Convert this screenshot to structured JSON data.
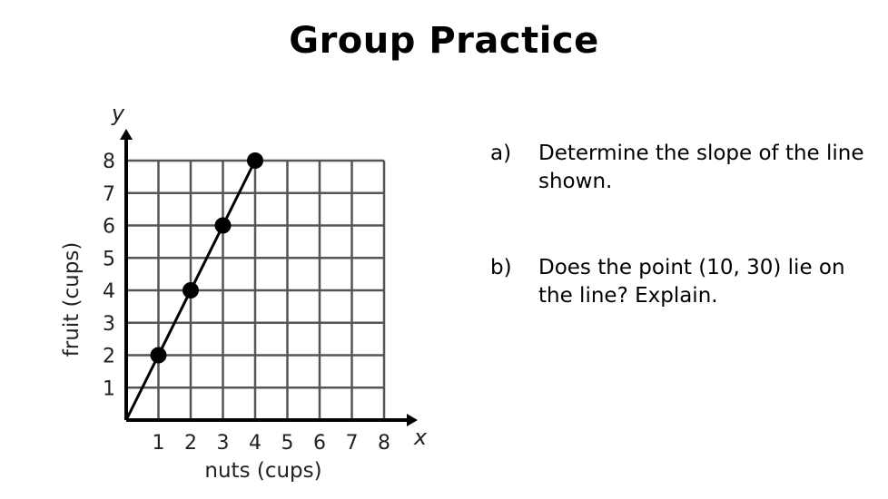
{
  "slide": {
    "title": "Group Practice",
    "questions": [
      {
        "label": "a)",
        "text": "Determine the slope of the line shown."
      },
      {
        "label": "b)",
        "text": "Does the point (10, 30) lie on the line? Explain."
      }
    ]
  },
  "chart_data": {
    "type": "line",
    "xlabel": "nuts (cups)",
    "ylabel": "fruit (cups)",
    "x_axis_var": "x",
    "y_axis_var": "y",
    "xlim": [
      0,
      8
    ],
    "ylim": [
      0,
      8
    ],
    "x_ticks": [
      "1",
      "2",
      "3",
      "4",
      "5",
      "6",
      "7",
      "8"
    ],
    "y_ticks": [
      "1",
      "2",
      "3",
      "4",
      "5",
      "6",
      "7",
      "8"
    ],
    "grid": true,
    "line": {
      "from": [
        0,
        0
      ],
      "to": [
        4,
        8
      ]
    },
    "points": [
      [
        1,
        2
      ],
      [
        2,
        4
      ],
      [
        3,
        6
      ],
      [
        4,
        8
      ]
    ],
    "colors": {
      "grid": "#555555",
      "line": "#000000",
      "points": "#000000"
    }
  }
}
